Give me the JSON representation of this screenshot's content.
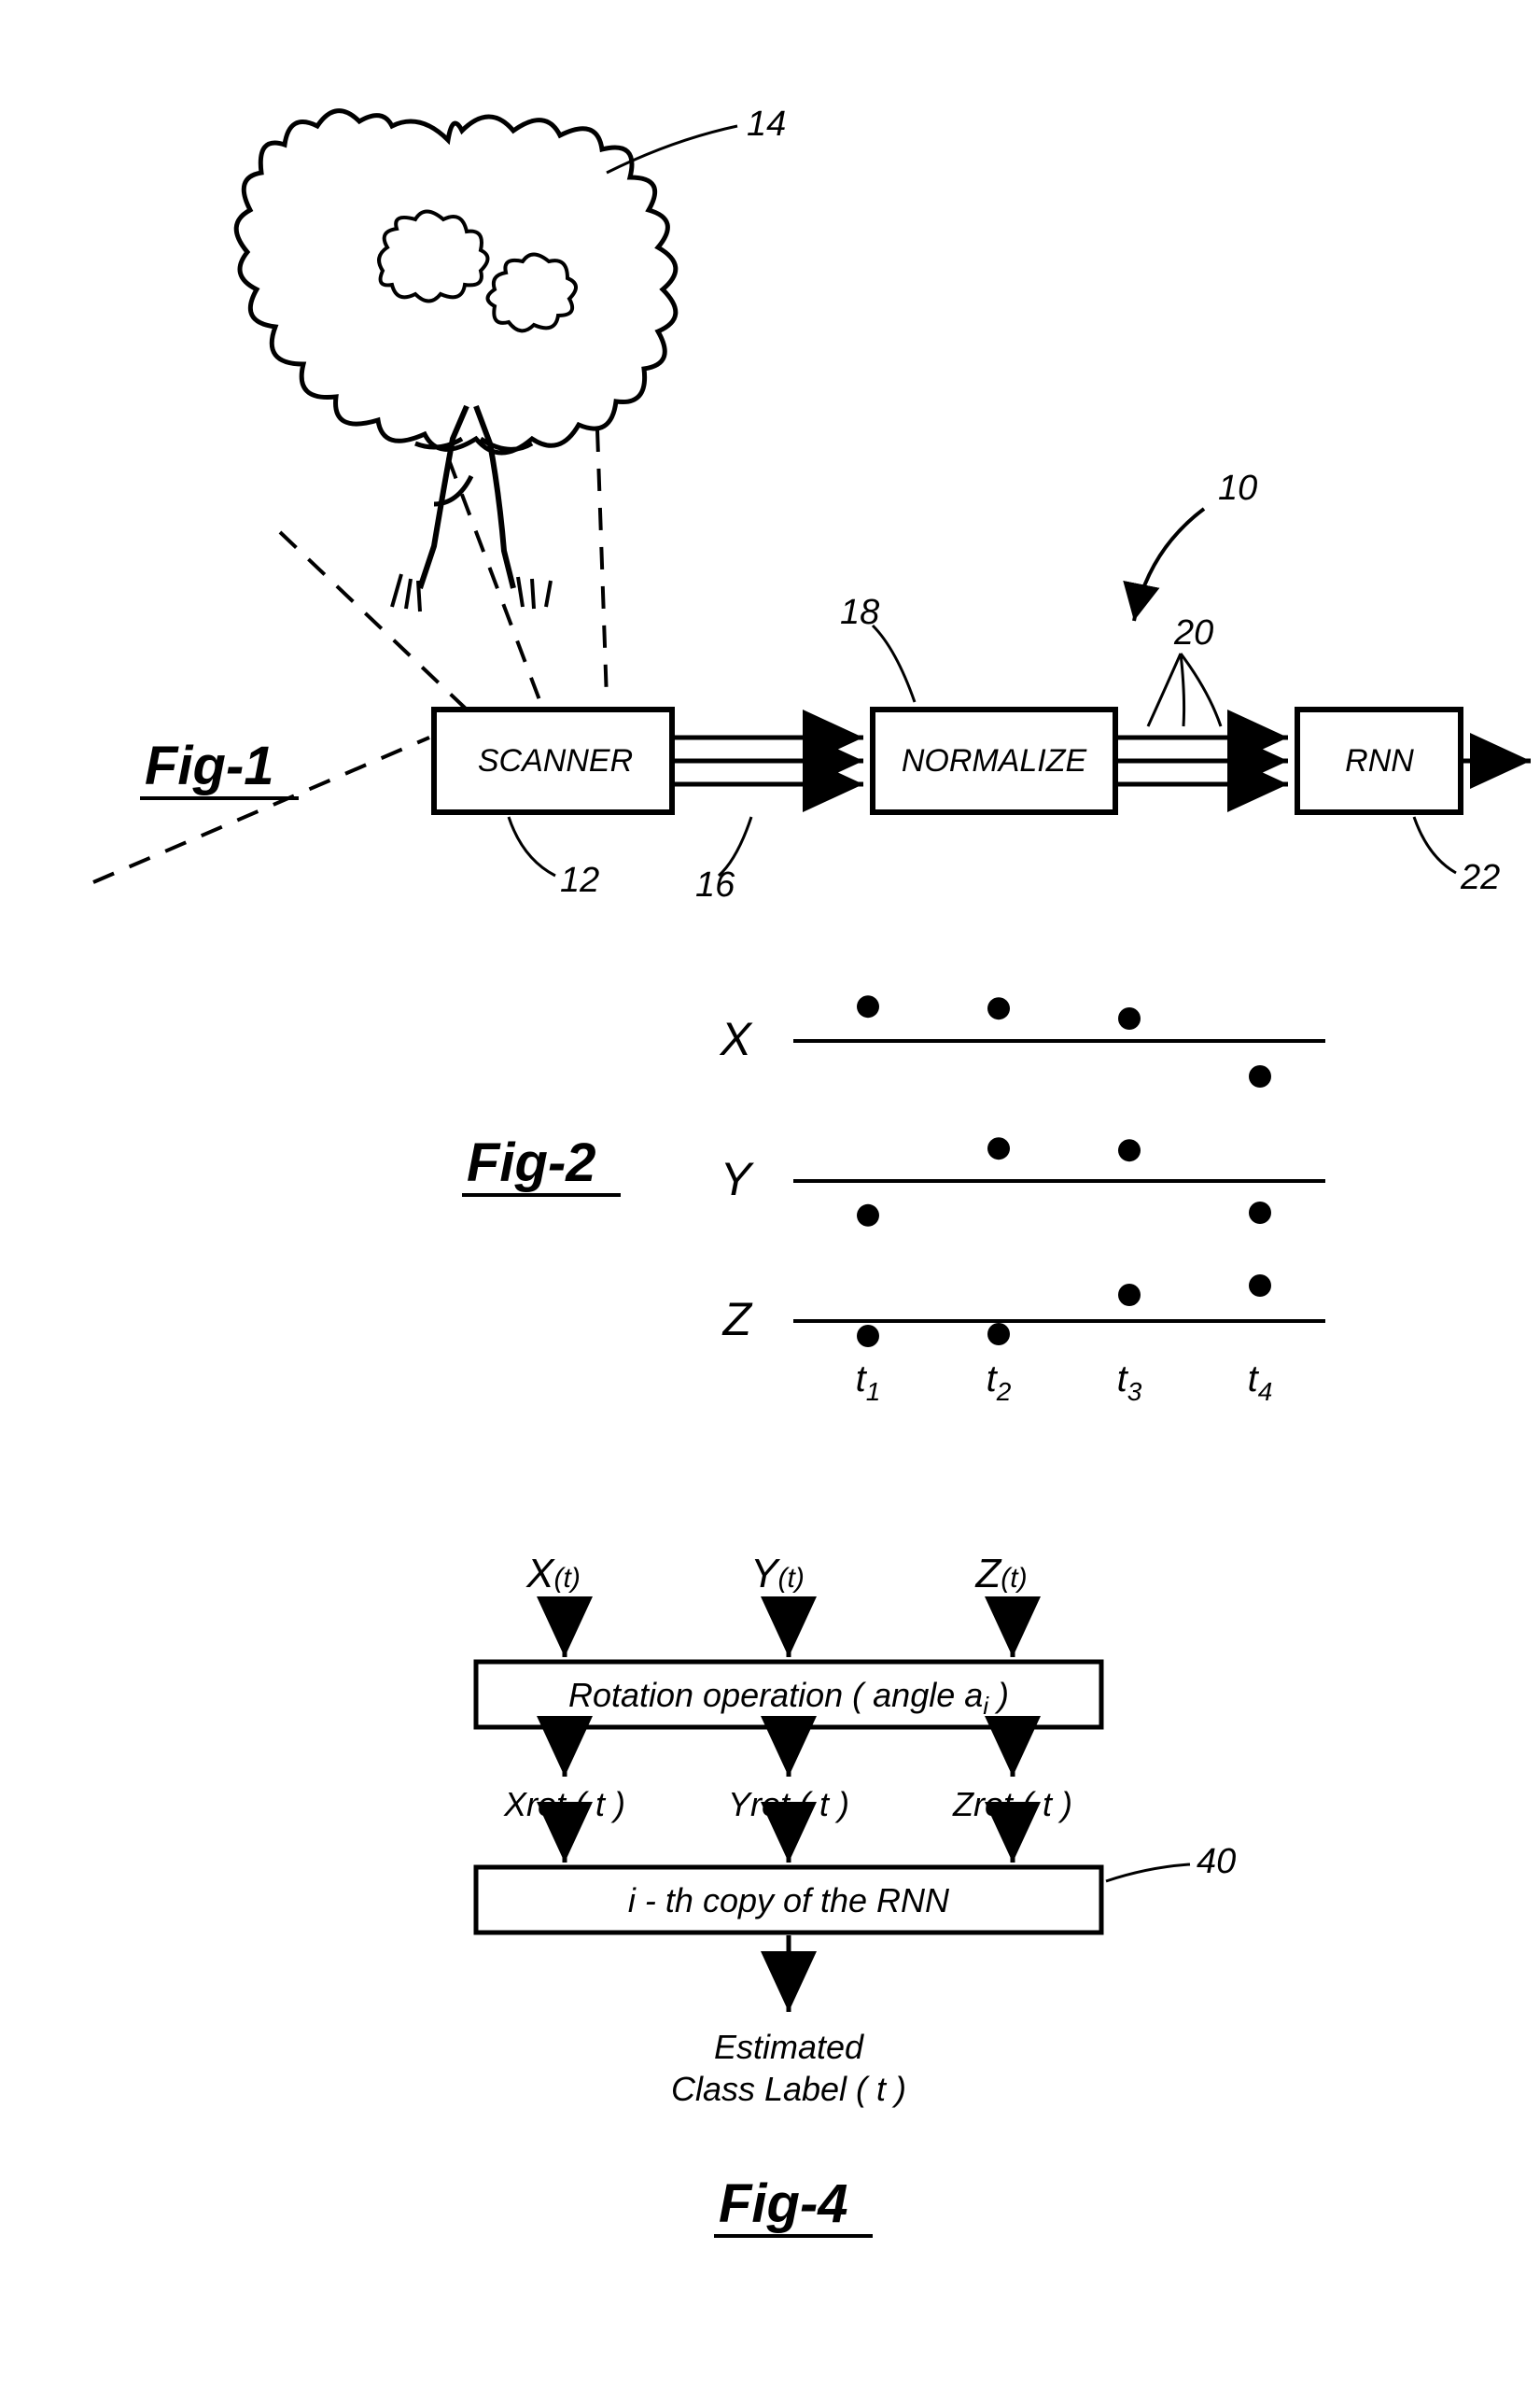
{
  "fig1": {
    "label": "Fig-1",
    "blocks": {
      "scanner": {
        "text": "SCANNER",
        "num": "12"
      },
      "normalize": {
        "text": "NORMALIZE",
        "num": "18"
      },
      "rnn": {
        "text": "RNN",
        "num": "22"
      }
    },
    "arrow_nums": {
      "in": "16",
      "out": "20"
    },
    "tree_num": "14",
    "system_num": "10"
  },
  "fig2": {
    "label": "Fig-2",
    "axes": [
      "X",
      "Y",
      "Z"
    ],
    "timesteps": [
      "t",
      "t",
      "t",
      "t"
    ],
    "timestep_subs": [
      "1",
      "2",
      "3",
      "4"
    ],
    "points": {
      "X": [
        0.92,
        0.87,
        0.6,
        -0.95
      ],
      "Y": [
        -0.92,
        0.87,
        0.82,
        -0.85
      ],
      "Z": [
        -0.4,
        -0.35,
        0.7,
        0.95
      ]
    }
  },
  "fig4": {
    "label": "Fig-4",
    "inputs": [
      "X",
      "Y",
      "Z"
    ],
    "input_suffix": "(t)",
    "rotation_text_pre": "Rotation operation  ( angle a",
    "rotation_text_sub": "i",
    "rotation_text_post": " )",
    "mids": [
      "Xrot ( t )",
      "Yrot ( t )",
      "Zrot ( t )"
    ],
    "rnn_text": "i - th copy of the RNN",
    "rnn_num": "40",
    "output_l1": "Estimated",
    "output_l2": "Class Label  ( t )"
  },
  "style": {
    "stroke": "#000000",
    "stroke_w_box": 6,
    "stroke_w_line": 5,
    "stroke_w_thin": 3,
    "label_fontsize": 54
  }
}
